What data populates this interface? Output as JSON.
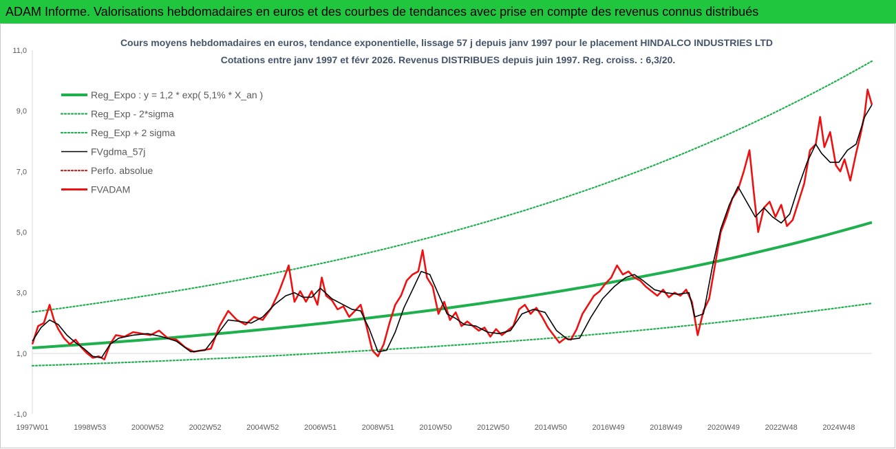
{
  "banner": {
    "title": "ADAM Informe. Valorisations hebdomadaires en euros et des courbes de tendances avec prise en compte des revenus connus distribués"
  },
  "colors": {
    "banner_bg": "#1fc63e",
    "reg": "#1fb04e",
    "fvgdma": "#000000",
    "fvadam": "#ee1111",
    "perfo": "#cc2222",
    "axis_text": "#595959",
    "title_text": "#44546a"
  },
  "chart_data": {
    "type": "line",
    "title": "Cours moyens hebdomadaires en euros, tendance exponentielle, lissage 57 j depuis janv 1997 pour le placement HINDALCO INDUSTRIES LTD",
    "subtitle": "Cotations entre janv 1997 et févr 2026. Revenus DISTRIBUES depuis juin 1997. Reg. croiss. : 6,3/20.",
    "xlabel": "",
    "ylabel": "",
    "ylim": [
      -1,
      11
    ],
    "yticks": [
      "-1,0",
      "1,0",
      "3,0",
      "5,0",
      "7,0",
      "9,0",
      "11,0"
    ],
    "xlim": [
      1997.0,
      2026.15
    ],
    "xticks": [
      {
        "label": "1997W01",
        "x": 1997.0
      },
      {
        "label": "1998W53",
        "x": 1999.0
      },
      {
        "label": "2000W52",
        "x": 2001.0
      },
      {
        "label": "2002W52",
        "x": 2003.0
      },
      {
        "label": "2004W52",
        "x": 2005.0
      },
      {
        "label": "2006W51",
        "x": 2007.0
      },
      {
        "label": "2008W51",
        "x": 2009.0
      },
      {
        "label": "2010W50",
        "x": 2011.0
      },
      {
        "label": "2012W50",
        "x": 2013.0
      },
      {
        "label": "2014W50",
        "x": 2015.0
      },
      {
        "label": "2016W49",
        "x": 2017.0
      },
      {
        "label": "2018W49",
        "x": 2019.0
      },
      {
        "label": "2020W49",
        "x": 2021.0
      },
      {
        "label": "2022W48",
        "x": 2023.0
      },
      {
        "label": "2024W48",
        "x": 2025.0
      }
    ],
    "grid": false,
    "legend_position": "top-left",
    "series": [
      {
        "name": "Reg_Expo : y = 1,2 * exp( 5,1% *  X_an )",
        "style": "solid-thick",
        "color": "#1fb04e",
        "x": [
          1997,
          2000,
          2003,
          2006,
          2009,
          2012,
          2015,
          2018,
          2021,
          2024,
          2026.15
        ],
        "values": [
          1.18,
          1.38,
          1.61,
          1.88,
          2.2,
          2.57,
          3.0,
          3.5,
          4.08,
          4.76,
          5.32
        ]
      },
      {
        "name": "Reg_Exp - 2*sigma",
        "style": "dotted",
        "color": "#1fb04e",
        "x": [
          1997,
          2000,
          2003,
          2006,
          2009,
          2012,
          2015,
          2018,
          2021,
          2024,
          2026.15
        ],
        "values": [
          0.59,
          0.69,
          0.81,
          0.95,
          1.11,
          1.29,
          1.5,
          1.75,
          2.04,
          2.38,
          2.65
        ]
      },
      {
        "name": "Reg_Exp + 2 sigma",
        "style": "dotted",
        "color": "#1fb04e",
        "x": [
          1997,
          2000,
          2003,
          2006,
          2009,
          2012,
          2015,
          2018,
          2021,
          2024,
          2026.15
        ],
        "values": [
          2.36,
          2.76,
          3.22,
          3.76,
          4.39,
          5.13,
          5.99,
          6.99,
          8.16,
          9.53,
          10.64
        ]
      },
      {
        "name": "FVgdma_57j",
        "style": "solid",
        "color": "#000000",
        "x": [
          1997.0,
          1997.3,
          1997.6,
          1997.9,
          1998.2,
          1998.5,
          1998.8,
          1999.1,
          1999.4,
          1999.7,
          2000.0,
          2000.5,
          2001.0,
          2001.5,
          2002.0,
          2002.5,
          2003.0,
          2003.4,
          2003.8,
          2004.2,
          2004.6,
          2005.0,
          2005.4,
          2005.8,
          2006.1,
          2006.4,
          2006.7,
          2007.0,
          2007.4,
          2007.8,
          2008.1,
          2008.4,
          2008.7,
          2009.0,
          2009.3,
          2009.6,
          2009.9,
          2010.2,
          2010.5,
          2010.8,
          2011.1,
          2011.4,
          2011.7,
          2012.0,
          2012.4,
          2012.8,
          2013.2,
          2013.6,
          2014.0,
          2014.4,
          2014.8,
          2015.2,
          2015.6,
          2016.0,
          2016.4,
          2016.8,
          2017.2,
          2017.6,
          2017.9,
          2018.2,
          2018.6,
          2019.0,
          2019.4,
          2019.8,
          2020.0,
          2020.3,
          2020.6,
          2020.9,
          2021.2,
          2021.5,
          2021.8,
          2022.1,
          2022.4,
          2022.7,
          2023.0,
          2023.3,
          2023.6,
          2023.9,
          2024.2,
          2024.4,
          2024.7,
          2025.0,
          2025.3,
          2025.6,
          2025.9,
          2026.15
        ],
        "values": [
          1.4,
          1.85,
          2.1,
          1.95,
          1.6,
          1.35,
          1.15,
          0.9,
          0.85,
          1.3,
          1.5,
          1.6,
          1.65,
          1.55,
          1.4,
          1.05,
          1.1,
          1.6,
          2.1,
          2.05,
          2.0,
          2.2,
          2.6,
          2.9,
          3.0,
          2.85,
          2.85,
          3.15,
          2.8,
          2.6,
          2.45,
          2.4,
          1.8,
          1.05,
          1.1,
          1.7,
          2.5,
          3.1,
          3.7,
          3.6,
          2.95,
          2.3,
          2.15,
          1.95,
          1.9,
          1.7,
          1.65,
          1.75,
          2.3,
          2.45,
          2.35,
          1.75,
          1.45,
          1.5,
          2.2,
          2.8,
          3.2,
          3.5,
          3.6,
          3.4,
          3.1,
          3.0,
          2.95,
          3.0,
          2.2,
          2.3,
          3.8,
          5.1,
          5.9,
          6.5,
          6.0,
          5.5,
          5.8,
          5.5,
          5.3,
          5.6,
          6.5,
          7.3,
          7.9,
          7.6,
          7.3,
          7.3,
          7.7,
          7.9,
          8.8,
          9.2
        ]
      },
      {
        "name": "Perfo. absolue",
        "style": "dotted",
        "color": "#cc2222",
        "x": [],
        "values": []
      },
      {
        "name": "FVADAM",
        "style": "solid-thick",
        "color": "#ee1111",
        "x": [
          1997.0,
          1997.2,
          1997.4,
          1997.6,
          1997.75,
          1997.9,
          1998.1,
          1998.3,
          1998.5,
          1998.7,
          1998.9,
          1999.1,
          1999.3,
          1999.5,
          1999.7,
          1999.9,
          2000.2,
          2000.5,
          2000.8,
          2001.1,
          2001.4,
          2001.7,
          2002.0,
          2002.3,
          2002.6,
          2002.9,
          2003.2,
          2003.5,
          2003.8,
          2004.1,
          2004.4,
          2004.7,
          2005.0,
          2005.3,
          2005.55,
          2005.75,
          2005.9,
          2006.1,
          2006.3,
          2006.5,
          2006.7,
          2006.9,
          2007.05,
          2007.2,
          2007.4,
          2007.6,
          2007.8,
          2008.0,
          2008.2,
          2008.4,
          2008.6,
          2008.8,
          2009.0,
          2009.2,
          2009.4,
          2009.6,
          2009.8,
          2010.0,
          2010.2,
          2010.4,
          2010.55,
          2010.7,
          2010.9,
          2011.1,
          2011.3,
          2011.5,
          2011.7,
          2011.9,
          2012.1,
          2012.3,
          2012.5,
          2012.7,
          2012.9,
          2013.1,
          2013.3,
          2013.5,
          2013.7,
          2013.9,
          2014.1,
          2014.3,
          2014.5,
          2014.7,
          2014.9,
          2015.1,
          2015.3,
          2015.5,
          2015.7,
          2015.9,
          2016.1,
          2016.3,
          2016.5,
          2016.7,
          2016.9,
          2017.1,
          2017.3,
          2017.5,
          2017.7,
          2017.9,
          2018.1,
          2018.3,
          2018.5,
          2018.7,
          2018.9,
          2019.1,
          2019.3,
          2019.5,
          2019.7,
          2019.9,
          2020.1,
          2020.3,
          2020.5,
          2020.7,
          2020.9,
          2021.1,
          2021.3,
          2021.5,
          2021.7,
          2021.9,
          2022.05,
          2022.2,
          2022.4,
          2022.6,
          2022.8,
          2023.0,
          2023.2,
          2023.4,
          2023.6,
          2023.8,
          2024.0,
          2024.2,
          2024.35,
          2024.5,
          2024.7,
          2024.9,
          2025.05,
          2025.2,
          2025.4,
          2025.6,
          2025.75,
          2025.9,
          2026.0,
          2026.15
        ],
        "values": [
          1.3,
          1.9,
          2.0,
          2.6,
          2.1,
          1.8,
          1.5,
          1.3,
          1.45,
          1.2,
          1.0,
          0.85,
          0.9,
          0.8,
          1.3,
          1.6,
          1.55,
          1.7,
          1.65,
          1.6,
          1.75,
          1.5,
          1.45,
          1.2,
          1.05,
          1.1,
          1.15,
          1.9,
          2.4,
          2.1,
          1.95,
          2.2,
          2.1,
          2.5,
          3.0,
          3.5,
          3.9,
          2.7,
          3.05,
          2.7,
          3.05,
          2.6,
          3.5,
          2.9,
          2.75,
          2.45,
          2.55,
          2.2,
          2.4,
          2.6,
          1.9,
          1.1,
          0.9,
          1.3,
          2.0,
          2.6,
          2.9,
          3.4,
          3.6,
          3.7,
          4.4,
          3.5,
          3.2,
          2.3,
          2.7,
          2.1,
          2.35,
          1.9,
          2.05,
          1.9,
          1.75,
          1.85,
          1.55,
          1.8,
          1.6,
          1.75,
          1.9,
          2.45,
          2.6,
          2.3,
          2.5,
          2.2,
          1.85,
          1.6,
          1.35,
          1.5,
          1.45,
          1.8,
          2.3,
          2.6,
          2.9,
          3.05,
          3.3,
          3.5,
          3.9,
          3.6,
          3.7,
          3.5,
          3.4,
          3.2,
          3.05,
          2.9,
          3.1,
          2.85,
          3.0,
          2.9,
          3.1,
          2.7,
          1.6,
          2.4,
          2.8,
          3.9,
          5.0,
          5.5,
          6.1,
          6.4,
          7.0,
          7.7,
          6.3,
          5.0,
          5.8,
          6.0,
          5.5,
          5.9,
          5.2,
          5.4,
          6.0,
          6.6,
          7.7,
          7.9,
          8.8,
          7.8,
          8.3,
          7.2,
          7.0,
          7.4,
          6.7,
          7.6,
          8.2,
          8.9,
          9.7,
          9.2
        ]
      }
    ]
  }
}
